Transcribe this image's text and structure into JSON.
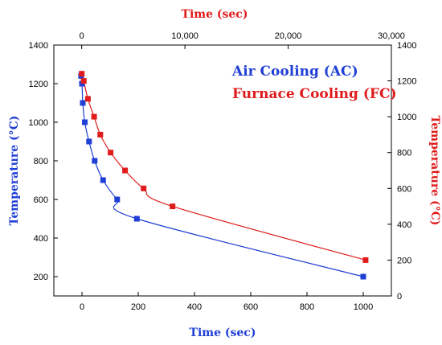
{
  "chart_data": {
    "type": "scatter",
    "title": "",
    "legend_placement": "top-right",
    "grid": false,
    "axes": {
      "bottom": {
        "label": "Time (sec)",
        "range": [
          -100,
          1100
        ],
        "ticks": [
          0,
          200,
          400,
          600,
          800,
          1000
        ],
        "tick_labels": [
          "0",
          "200",
          "400",
          "600",
          "800",
          "1000"
        ],
        "color": "#1f3fd6"
      },
      "top": {
        "label": "Time (sec)",
        "range": [
          -2700,
          30000
        ],
        "ticks": [
          0,
          10000,
          20000,
          30000
        ],
        "tick_labels": [
          "0",
          "10,000",
          "20,000",
          "30,000"
        ],
        "color": "#e01b1b"
      },
      "left": {
        "label": "Temperature (°C)",
        "range": [
          100,
          1400
        ],
        "ticks": [
          200,
          400,
          600,
          800,
          1000,
          1200,
          1400
        ],
        "tick_labels": [
          "200",
          "400",
          "600",
          "800",
          "1000",
          "1200",
          "1400"
        ],
        "color": "#1f3fd6"
      },
      "right": {
        "label": "Temperature (°C)",
        "range": [
          0,
          1400
        ],
        "ticks": [
          0,
          200,
          400,
          600,
          800,
          1000,
          1200,
          1400
        ],
        "tick_labels": [
          "0",
          "200",
          "400",
          "600",
          "800",
          "1000",
          "1200",
          "1400"
        ],
        "color": "#e01b1b"
      }
    },
    "series": [
      {
        "name": "Air Cooling (AC)",
        "color": "#1f3fd6",
        "x_axis": "bottom",
        "y_axis": "left",
        "x": [
          -3,
          0,
          3,
          10,
          25,
          45,
          75,
          125,
          195,
          1000
        ],
        "y": [
          1240,
          1200,
          1100,
          1000,
          900,
          800,
          700,
          600,
          500,
          200
        ]
      },
      {
        "name": "Furnace Cooling (FC)",
        "color": "#e01b1b",
        "x_axis": "top",
        "y_axis": "right",
        "x": [
          0,
          200,
          600,
          1200,
          1800,
          2800,
          4200,
          6000,
          8800,
          27500
        ],
        "y": [
          1240,
          1200,
          1100,
          1000,
          900,
          800,
          700,
          600,
          500,
          200
        ]
      }
    ]
  }
}
